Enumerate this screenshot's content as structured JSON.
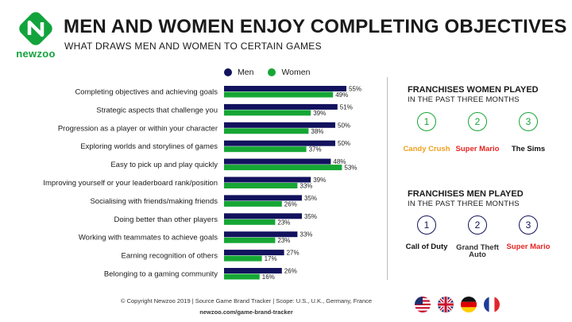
{
  "brand": {
    "name": "newzoo"
  },
  "header": {
    "title": "MEN AND WOMEN ENJOY COMPLETING OBJECTIVES",
    "subtitle": "WHAT DRAWS MEN AND WOMEN TO CERTAIN GAMES"
  },
  "colors": {
    "men": "#12125e",
    "women": "#16a635"
  },
  "chart_data": {
    "type": "bar",
    "orientation": "horizontal",
    "categories": [
      "Completing objectives and achieving goals",
      "Strategic aspects that challenge you",
      "Progression as a player or within your character",
      "Exploring worlds and storylines of games",
      "Easy to pick up and play quickly",
      "Improving yourself or your leaderboard rank/position",
      "Socialising with friends/making friends",
      "Doing better than other players",
      "Working with teammates to achieve goals",
      "Earning recognition of others",
      "Belonging to a gaming community"
    ],
    "series": [
      {
        "name": "Men",
        "values": [
          55,
          51,
          50,
          50,
          48,
          39,
          35,
          35,
          33,
          27,
          26
        ]
      },
      {
        "name": "Women",
        "values": [
          49,
          39,
          38,
          37,
          53,
          33,
          26,
          23,
          23,
          17,
          16
        ]
      }
    ],
    "unit": "%",
    "xlim": [
      0,
      60
    ],
    "legend": "top",
    "grid": false
  },
  "women_panel": {
    "title": "FRANCHISES WOMEN PLAYED",
    "subtitle": "IN THE PAST THREE MONTHS",
    "items": [
      {
        "rank": "1",
        "name": "Candy Crush"
      },
      {
        "rank": "2",
        "name": "Super Mario"
      },
      {
        "rank": "3",
        "name": "The Sims"
      }
    ]
  },
  "men_panel": {
    "title": "FRANCHISES MEN PLAYED",
    "subtitle": "IN THE PAST THREE MONTHS",
    "items": [
      {
        "rank": "1",
        "name": "Call of Duty"
      },
      {
        "rank": "2",
        "name": "Grand Theft Auto"
      },
      {
        "rank": "3",
        "name": "Super Mario"
      }
    ]
  },
  "footer": {
    "copyright": "© Copyright Newzoo 2019 | Source Game Brand Tracker | Scope: U.S., U.K., Germany, France",
    "url": "newzoo.com/game-brand-tracker",
    "flags": [
      "us-flag",
      "uk-flag",
      "germany-flag",
      "france-flag"
    ]
  }
}
